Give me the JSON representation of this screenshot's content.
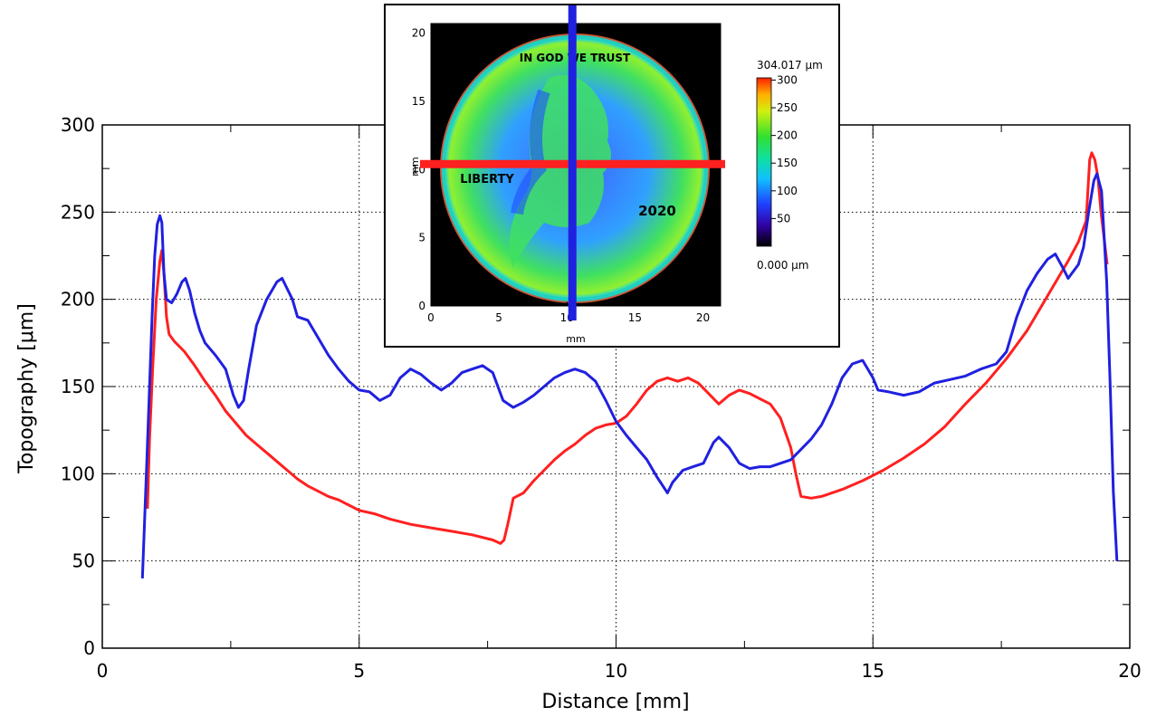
{
  "chart_data": {
    "type": "line",
    "title": "",
    "xlabel": "Distance [mm]",
    "ylabel": "Topography [μm]",
    "xlim": [
      0,
      20
    ],
    "ylim": [
      0,
      300
    ],
    "x_ticks": [
      "0",
      "5",
      "10",
      "15",
      "20"
    ],
    "y_ticks": [
      "0",
      "50",
      "100",
      "150",
      "200",
      "250",
      "300"
    ],
    "grid": true,
    "series": [
      {
        "color": "#ff2020",
        "points": [
          [
            0.88,
            80
          ],
          [
            0.92,
            120
          ],
          [
            0.98,
            160
          ],
          [
            1.05,
            200
          ],
          [
            1.12,
            222
          ],
          [
            1.16,
            228
          ],
          [
            1.2,
            215
          ],
          [
            1.25,
            190
          ],
          [
            1.3,
            180
          ],
          [
            1.4,
            176
          ],
          [
            1.6,
            170
          ],
          [
            1.8,
            162
          ],
          [
            2.0,
            153
          ],
          [
            2.2,
            145
          ],
          [
            2.4,
            136
          ],
          [
            2.6,
            129
          ],
          [
            2.8,
            122
          ],
          [
            3.0,
            117
          ],
          [
            3.2,
            112
          ],
          [
            3.4,
            107
          ],
          [
            3.6,
            102
          ],
          [
            3.8,
            97
          ],
          [
            4.0,
            93
          ],
          [
            4.2,
            90
          ],
          [
            4.4,
            87
          ],
          [
            4.6,
            85
          ],
          [
            4.8,
            82
          ],
          [
            5.0,
            79
          ],
          [
            5.3,
            77
          ],
          [
            5.6,
            74
          ],
          [
            6.0,
            71
          ],
          [
            6.4,
            69
          ],
          [
            6.8,
            67
          ],
          [
            7.2,
            65
          ],
          [
            7.6,
            62
          ],
          [
            7.75,
            60
          ],
          [
            7.82,
            62
          ],
          [
            7.9,
            72
          ],
          [
            8.0,
            86
          ],
          [
            8.2,
            89
          ],
          [
            8.4,
            96
          ],
          [
            8.6,
            102
          ],
          [
            8.8,
            108
          ],
          [
            9.0,
            113
          ],
          [
            9.2,
            117
          ],
          [
            9.4,
            122
          ],
          [
            9.6,
            126
          ],
          [
            9.8,
            128
          ],
          [
            10.0,
            129
          ],
          [
            10.2,
            133
          ],
          [
            10.4,
            140
          ],
          [
            10.6,
            148
          ],
          [
            10.8,
            153
          ],
          [
            11.0,
            155
          ],
          [
            11.2,
            153
          ],
          [
            11.4,
            155
          ],
          [
            11.6,
            152
          ],
          [
            11.8,
            146
          ],
          [
            12.0,
            140
          ],
          [
            12.2,
            145
          ],
          [
            12.4,
            148
          ],
          [
            12.6,
            146
          ],
          [
            12.8,
            143
          ],
          [
            13.0,
            140
          ],
          [
            13.2,
            132
          ],
          [
            13.4,
            115
          ],
          [
            13.5,
            100
          ],
          [
            13.6,
            87
          ],
          [
            13.8,
            86
          ],
          [
            14.0,
            87
          ],
          [
            14.4,
            91
          ],
          [
            14.8,
            96
          ],
          [
            15.2,
            102
          ],
          [
            15.6,
            109
          ],
          [
            16.0,
            117
          ],
          [
            16.4,
            127
          ],
          [
            16.8,
            140
          ],
          [
            17.2,
            152
          ],
          [
            17.6,
            166
          ],
          [
            18.0,
            182
          ],
          [
            18.4,
            202
          ],
          [
            18.8,
            222
          ],
          [
            19.0,
            233
          ],
          [
            19.15,
            245
          ],
          [
            19.22,
            280
          ],
          [
            19.26,
            284
          ],
          [
            19.32,
            280
          ],
          [
            19.38,
            270
          ],
          [
            19.44,
            250
          ],
          [
            19.5,
            235
          ],
          [
            19.56,
            220
          ]
        ]
      },
      {
        "color": "#2020e0",
        "points": [
          [
            0.78,
            40
          ],
          [
            0.82,
            70
          ],
          [
            0.87,
            110
          ],
          [
            0.92,
            150
          ],
          [
            0.97,
            190
          ],
          [
            1.02,
            225
          ],
          [
            1.07,
            243
          ],
          [
            1.12,
            248
          ],
          [
            1.16,
            244
          ],
          [
            1.2,
            215
          ],
          [
            1.25,
            200
          ],
          [
            1.35,
            198
          ],
          [
            1.45,
            203
          ],
          [
            1.55,
            210
          ],
          [
            1.62,
            212
          ],
          [
            1.7,
            205
          ],
          [
            1.8,
            192
          ],
          [
            1.9,
            182
          ],
          [
            2.0,
            175
          ],
          [
            2.2,
            168
          ],
          [
            2.4,
            160
          ],
          [
            2.55,
            145
          ],
          [
            2.65,
            138
          ],
          [
            2.75,
            142
          ],
          [
            2.85,
            160
          ],
          [
            3.0,
            185
          ],
          [
            3.2,
            200
          ],
          [
            3.4,
            210
          ],
          [
            3.5,
            212
          ],
          [
            3.6,
            206
          ],
          [
            3.7,
            200
          ],
          [
            3.8,
            190
          ],
          [
            4.0,
            188
          ],
          [
            4.2,
            178
          ],
          [
            4.4,
            168
          ],
          [
            4.6,
            160
          ],
          [
            4.8,
            153
          ],
          [
            5.0,
            148
          ],
          [
            5.2,
            147
          ],
          [
            5.4,
            142
          ],
          [
            5.6,
            145
          ],
          [
            5.8,
            155
          ],
          [
            6.0,
            160
          ],
          [
            6.2,
            157
          ],
          [
            6.4,
            152
          ],
          [
            6.6,
            148
          ],
          [
            6.8,
            152
          ],
          [
            7.0,
            158
          ],
          [
            7.2,
            160
          ],
          [
            7.4,
            162
          ],
          [
            7.6,
            158
          ],
          [
            7.8,
            142
          ],
          [
            8.0,
            138
          ],
          [
            8.2,
            141
          ],
          [
            8.4,
            145
          ],
          [
            8.6,
            150
          ],
          [
            8.8,
            155
          ],
          [
            9.0,
            158
          ],
          [
            9.2,
            160
          ],
          [
            9.4,
            158
          ],
          [
            9.6,
            153
          ],
          [
            9.8,
            142
          ],
          [
            10.0,
            130
          ],
          [
            10.2,
            122
          ],
          [
            10.4,
            115
          ],
          [
            10.6,
            108
          ],
          [
            10.8,
            98
          ],
          [
            11.0,
            89
          ],
          [
            11.1,
            95
          ],
          [
            11.3,
            102
          ],
          [
            11.5,
            104
          ],
          [
            11.7,
            106
          ],
          [
            11.9,
            118
          ],
          [
            12.0,
            121
          ],
          [
            12.2,
            115
          ],
          [
            12.4,
            106
          ],
          [
            12.6,
            103
          ],
          [
            12.8,
            104
          ],
          [
            13.0,
            104
          ],
          [
            13.2,
            106
          ],
          [
            13.4,
            108
          ],
          [
            13.6,
            114
          ],
          [
            13.8,
            120
          ],
          [
            14.0,
            128
          ],
          [
            14.2,
            140
          ],
          [
            14.4,
            155
          ],
          [
            14.6,
            163
          ],
          [
            14.8,
            165
          ],
          [
            15.0,
            155
          ],
          [
            15.1,
            148
          ],
          [
            15.3,
            147
          ],
          [
            15.6,
            145
          ],
          [
            15.9,
            147
          ],
          [
            16.2,
            152
          ],
          [
            16.5,
            154
          ],
          [
            16.8,
            156
          ],
          [
            17.1,
            160
          ],
          [
            17.4,
            163
          ],
          [
            17.6,
            170
          ],
          [
            17.8,
            190
          ],
          [
            18.0,
            205
          ],
          [
            18.2,
            215
          ],
          [
            18.4,
            223
          ],
          [
            18.55,
            226
          ],
          [
            18.7,
            218
          ],
          [
            18.8,
            212
          ],
          [
            19.0,
            220
          ],
          [
            19.1,
            230
          ],
          [
            19.2,
            250
          ],
          [
            19.3,
            268
          ],
          [
            19.36,
            272
          ],
          [
            19.45,
            262
          ],
          [
            19.55,
            210
          ],
          [
            19.62,
            150
          ],
          [
            19.68,
            90
          ],
          [
            19.75,
            50
          ]
        ]
      }
    ],
    "inset": {
      "type": "heatmap",
      "xlabel": "mm",
      "ylabel": "mm",
      "xlim": [
        0,
        21.3
      ],
      "ylim": [
        0,
        20.7
      ],
      "x_ticks": [
        "0",
        "5",
        "10",
        "15",
        "20"
      ],
      "y_ticks": [
        "0",
        "5",
        "10",
        "15",
        "20"
      ],
      "colorbar": {
        "max_label": "304.017 μm",
        "min_label": "0.000 μm",
        "ticks": [
          "300",
          "250",
          "200",
          "150",
          "100",
          "50"
        ],
        "range": [
          0,
          304.017
        ]
      },
      "coin_text": [
        "IN GOD WE TRUST",
        "LIBERTY",
        "2020"
      ],
      "h_line_y_mm": 10.4,
      "v_line_x_mm": 10.4,
      "h_line_color": "#ff2020",
      "v_line_color": "#2020e0"
    }
  }
}
